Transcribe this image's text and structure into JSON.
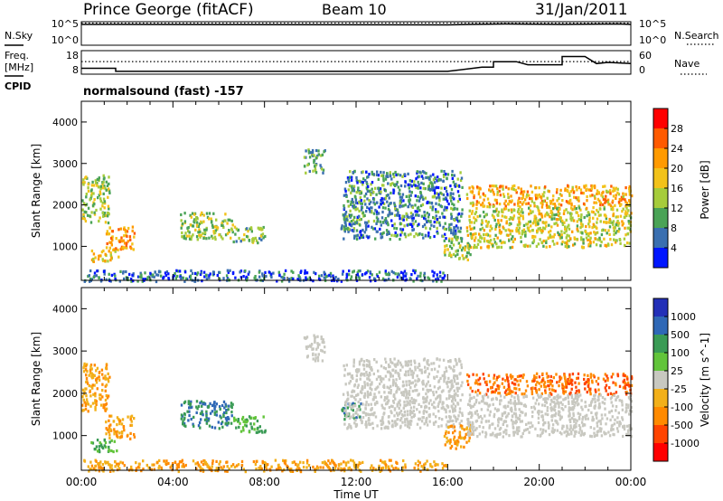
{
  "header": {
    "station": "Prince George (fitACF)",
    "beam": "Beam 10",
    "date": "31/Jan/2011"
  },
  "noise_panel": {
    "left_label": "N.Sky",
    "left_ticks": [
      "10^5",
      "10^0"
    ],
    "right_label": "N.Search",
    "right_ticks": [
      "10^5",
      "10^0"
    ]
  },
  "freq_panel": {
    "left_label_1": "Freq.",
    "left_label_2": "[MHz]",
    "left_ticks": [
      "18",
      "8"
    ],
    "right_label": "Nave",
    "right_ticks": [
      "60",
      "0"
    ]
  },
  "cpid": {
    "label": "CPID",
    "program": "normalsound (fast) -157"
  },
  "power_colorbar": {
    "label": "Power [dB]",
    "ticks": [
      "28",
      "24",
      "20",
      "16",
      "12",
      "8",
      "4"
    ],
    "colors": [
      "#ff0000",
      "#ff5a00",
      "#ff9a00",
      "#f2c21a",
      "#a6cc3b",
      "#4aa356",
      "#3a6fb0",
      "#0016ff"
    ]
  },
  "velocity_colorbar": {
    "label": "Velocity [m s^-1]",
    "ticks": [
      "1000",
      "500",
      "100",
      "25",
      "-25",
      "-100",
      "-500",
      "-1000"
    ],
    "colors": [
      "#2330b8",
      "#2f68b6",
      "#3a9b55",
      "#62c43a",
      "#c8c8c0",
      "#f2b01a",
      "#ff8a00",
      "#ff4400",
      "#ff0000"
    ]
  },
  "chart_data": [
    {
      "type": "line",
      "panel": "noise",
      "x_unit": "hours UT",
      "xlim": [
        0,
        24
      ],
      "series": [
        {
          "name": "N.Sky",
          "x": [
            0,
            0.2,
            0.5,
            16.0,
            17.0,
            18.5,
            21.0,
            23.5,
            24
          ],
          "y_log10": [
            4.6,
            4.6,
            4.6,
            4.5,
            4.6,
            4.7,
            4.6,
            4.7,
            4.6
          ]
        },
        {
          "name": "N.Search",
          "x": [
            0,
            24
          ],
          "y_log10": [
            4.9,
            4.9
          ]
        }
      ]
    },
    {
      "type": "line",
      "panel": "frequency / nave",
      "xlim": [
        0,
        24
      ],
      "series": [
        {
          "name": "Freq.",
          "x": [
            0,
            1.5,
            1.5,
            16.0,
            17.5,
            18.0,
            18.0,
            19.0,
            19.5,
            21.0,
            21.0,
            22.0,
            22.5,
            23.0,
            24
          ],
          "y": [
            10.5,
            10.5,
            9.2,
            9.2,
            11.0,
            11.0,
            13.3,
            13.3,
            12.0,
            12.0,
            15.5,
            15.5,
            12.5,
            13.0,
            12.5
          ]
        },
        {
          "name": "Nave",
          "x": [
            0,
            24
          ],
          "y": [
            32,
            32
          ]
        }
      ]
    },
    {
      "type": "heatmap",
      "panel": "power",
      "title": "normalsound (fast) -157",
      "xlabel": "",
      "ylabel": "Slant Range [km]",
      "x_ticks": [
        "00:00",
        "04:00",
        "08:00",
        "12:00",
        "16:00",
        "20:00",
        "00:00"
      ],
      "y_ticks": [
        "1000",
        "2000",
        "3000",
        "4000"
      ],
      "xlim": [
        0,
        24
      ],
      "ylim": [
        180,
        4500
      ],
      "zlabel": "Power [dB]",
      "regions": [
        {
          "t": [
            0.0,
            1.2
          ],
          "r": [
            1600,
            2750
          ],
          "value": 14
        },
        {
          "t": [
            0.4,
            1.6
          ],
          "r": [
            650,
            950
          ],
          "value": 18
        },
        {
          "t": [
            1.0,
            2.3
          ],
          "r": [
            950,
            1500
          ],
          "value": 22
        },
        {
          "t": [
            4.3,
            6.6
          ],
          "r": [
            1200,
            1850
          ],
          "value": 14
        },
        {
          "t": [
            6.6,
            8.0
          ],
          "r": [
            1100,
            1500
          ],
          "value": 12
        },
        {
          "t": [
            9.7,
            10.6
          ],
          "r": [
            2800,
            3400
          ],
          "value": 10
        },
        {
          "t": [
            11.3,
            12.2
          ],
          "r": [
            1400,
            1800
          ],
          "value": 10
        },
        {
          "t": [
            11.4,
            16.6
          ],
          "r": [
            1200,
            2850
          ],
          "value": 8
        },
        {
          "t": [
            15.8,
            17.0
          ],
          "r": [
            700,
            1300
          ],
          "value": 14
        },
        {
          "t": [
            16.8,
            24.0
          ],
          "r": [
            2000,
            2500
          ],
          "value": 20
        },
        {
          "t": [
            16.8,
            24.0
          ],
          "r": [
            1000,
            2000
          ],
          "value": 16
        },
        {
          "t": [
            0.0,
            16.0
          ],
          "r": [
            180,
            450
          ],
          "value": 6
        }
      ]
    },
    {
      "type": "heatmap",
      "panel": "velocity",
      "xlabel": "Time UT",
      "ylabel": "Slant Range [km]",
      "x_ticks": [
        "00:00",
        "04:00",
        "08:00",
        "12:00",
        "16:00",
        "20:00",
        "00:00"
      ],
      "y_ticks": [
        "1000",
        "2000",
        "3000",
        "4000"
      ],
      "xlim": [
        0,
        24
      ],
      "ylim": [
        180,
        4500
      ],
      "zlabel": "Velocity [m s^-1]",
      "regions": [
        {
          "t": [
            0.0,
            1.2
          ],
          "r": [
            1600,
            2750
          ],
          "value": -100
        },
        {
          "t": [
            0.4,
            1.6
          ],
          "r": [
            650,
            950
          ],
          "value": 100
        },
        {
          "t": [
            1.0,
            2.3
          ],
          "r": [
            950,
            1500
          ],
          "value": -100
        },
        {
          "t": [
            4.3,
            6.6
          ],
          "r": [
            1200,
            1850
          ],
          "value": 500
        },
        {
          "t": [
            6.6,
            8.0
          ],
          "r": [
            1100,
            1500
          ],
          "value": 100
        },
        {
          "t": [
            9.7,
            10.6
          ],
          "r": [
            2800,
            3400
          ],
          "value": 0
        },
        {
          "t": [
            11.3,
            12.2
          ],
          "r": [
            1400,
            1800
          ],
          "value": 500
        },
        {
          "t": [
            11.4,
            16.6
          ],
          "r": [
            1200,
            2850
          ],
          "value": 0
        },
        {
          "t": [
            15.8,
            17.0
          ],
          "r": [
            700,
            1300
          ],
          "value": -100
        },
        {
          "t": [
            16.8,
            24.0
          ],
          "r": [
            2000,
            2500
          ],
          "value": -500
        },
        {
          "t": [
            16.8,
            24.0
          ],
          "r": [
            1000,
            2000
          ],
          "value": 0
        },
        {
          "t": [
            0.0,
            16.0
          ],
          "r": [
            180,
            450
          ],
          "value": -100
        }
      ]
    }
  ]
}
